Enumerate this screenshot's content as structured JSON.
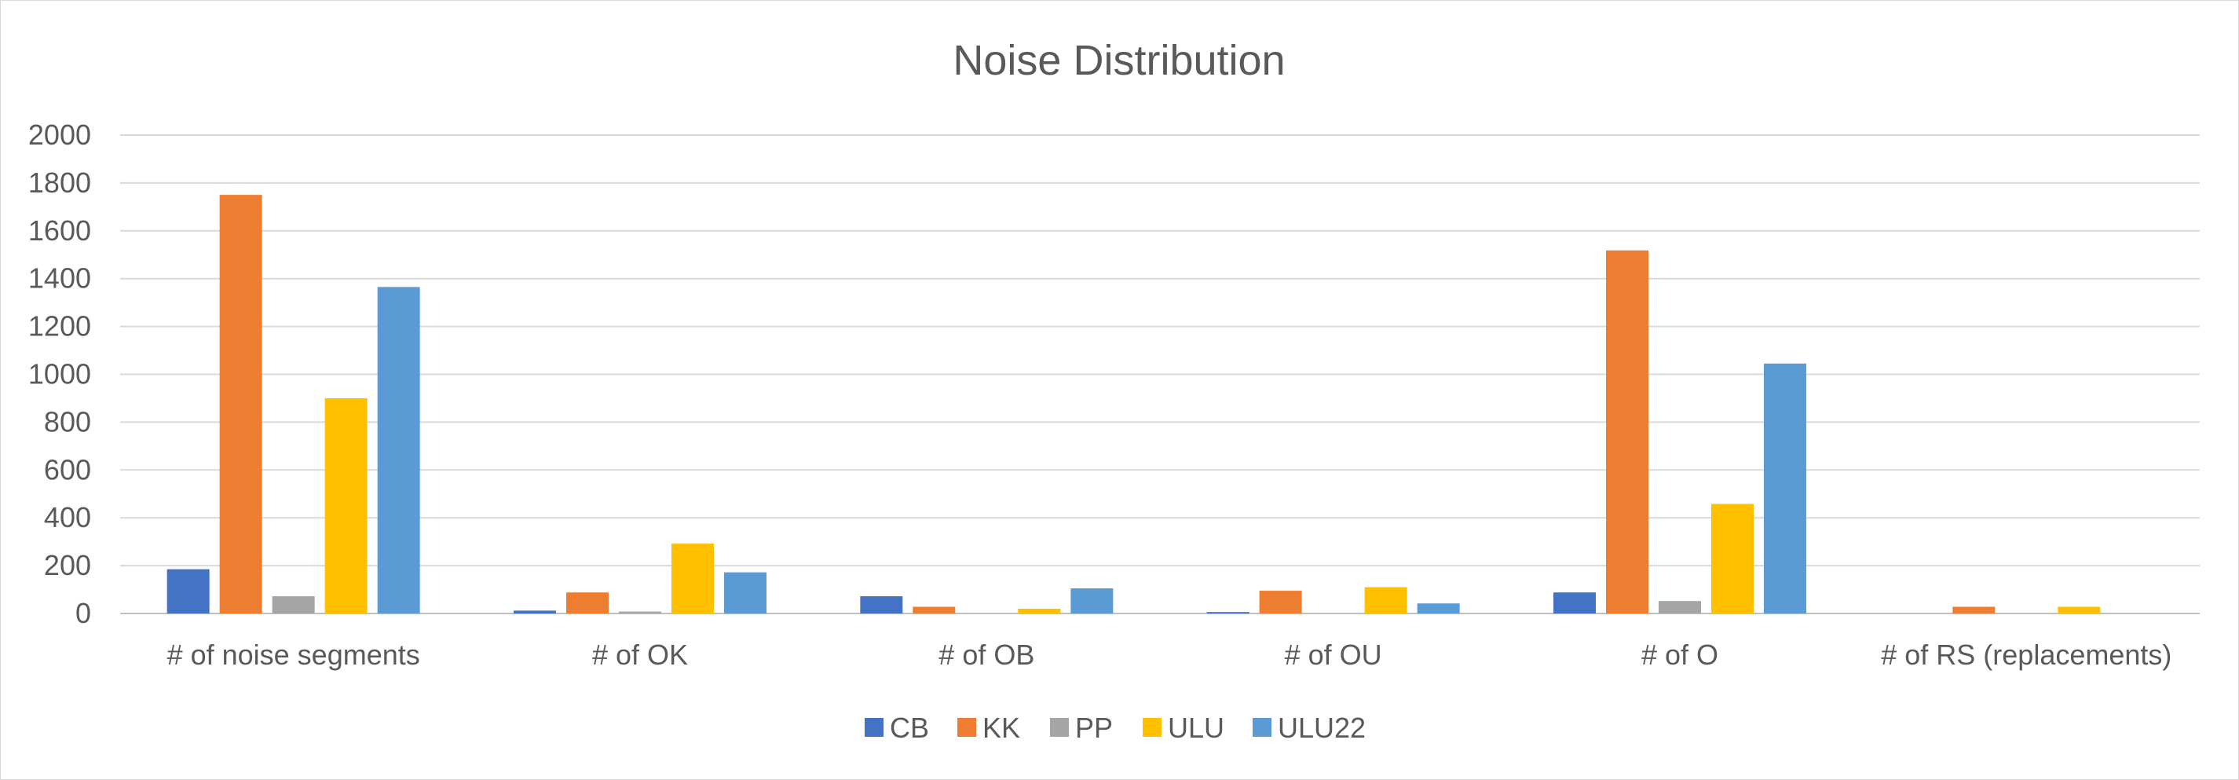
{
  "chart_data": {
    "type": "bar",
    "title": "Noise Distribution",
    "xlabel": "",
    "ylabel": "",
    "ylim": [
      0,
      2000
    ],
    "ytick_step": 200,
    "grid": true,
    "legend_position": "bottom",
    "categories": [
      "# of noise segments",
      "# of OK",
      "# of OB",
      "# of OU",
      "# of O",
      "# of RS (replacements)"
    ],
    "series": [
      {
        "name": "CB",
        "color": "#4472C4",
        "values": [
          185,
          12,
          72,
          6,
          88,
          0
        ]
      },
      {
        "name": "KK",
        "color": "#ED7D31",
        "values": [
          1750,
          88,
          28,
          95,
          1518,
          28
        ]
      },
      {
        "name": "PP",
        "color": "#A5A5A5",
        "values": [
          72,
          8,
          0,
          0,
          52,
          0
        ]
      },
      {
        "name": "ULU",
        "color": "#FFC000",
        "values": [
          900,
          292,
          20,
          110,
          458,
          28
        ]
      },
      {
        "name": "ULU22",
        "color": "#5B9BD5",
        "values": [
          1365,
          172,
          105,
          42,
          1045,
          0
        ]
      }
    ]
  }
}
